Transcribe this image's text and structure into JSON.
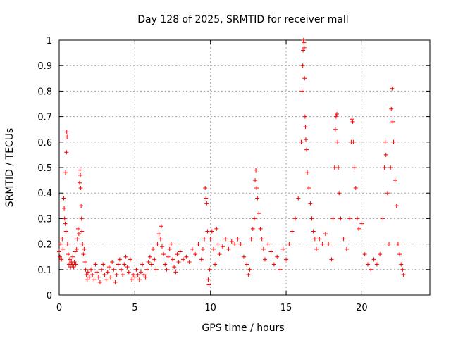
{
  "chart_data": {
    "type": "scatter",
    "title": "Day 128 of 2025, SRMTID for receiver mall",
    "xlabel": "GPS time / hours",
    "ylabel": "SRMTID / TECUs",
    "xlim": [
      0,
      24.5
    ],
    "ylim": [
      0,
      1
    ],
    "xticks": [
      0,
      5,
      10,
      15,
      20
    ],
    "xtick_labels": [
      "0",
      "5",
      "10",
      "15",
      "20"
    ],
    "yticks": [
      0,
      0.1,
      0.2,
      0.3,
      0.4,
      0.5,
      0.6,
      0.7,
      0.8,
      0.9,
      1
    ],
    "ytick_labels": [
      "0",
      "0.1",
      "0.2",
      "0.3",
      "0.4",
      "0.5",
      "0.6",
      "0.7",
      "0.8",
      "0.9",
      "1"
    ],
    "grid": true,
    "marker": "+",
    "color": "#ff0000",
    "series": [
      {
        "name": "SRMTID",
        "points": [
          [
            0.0,
            0.17
          ],
          [
            0.05,
            0.15
          ],
          [
            0.1,
            0.2
          ],
          [
            0.15,
            0.14
          ],
          [
            0.2,
            0.22
          ],
          [
            0.25,
            0.18
          ],
          [
            0.3,
            0.38
          ],
          [
            0.33,
            0.34
          ],
          [
            0.36,
            0.3
          ],
          [
            0.4,
            0.28
          ],
          [
            0.42,
            0.48
          ],
          [
            0.45,
            0.25
          ],
          [
            0.48,
            0.56
          ],
          [
            0.5,
            0.64
          ],
          [
            0.52,
            0.62
          ],
          [
            0.55,
            0.2
          ],
          [
            0.6,
            0.16
          ],
          [
            0.65,
            0.12
          ],
          [
            0.7,
            0.14
          ],
          [
            0.75,
            0.11
          ],
          [
            0.8,
            0.13
          ],
          [
            0.85,
            0.12
          ],
          [
            0.9,
            0.15
          ],
          [
            0.95,
            0.11
          ],
          [
            1.0,
            0.13
          ],
          [
            1.05,
            0.17
          ],
          [
            1.1,
            0.12
          ],
          [
            1.15,
            0.18
          ],
          [
            1.2,
            0.22
          ],
          [
            1.25,
            0.26
          ],
          [
            1.3,
            0.24
          ],
          [
            1.35,
            0.44
          ],
          [
            1.38,
            0.49
          ],
          [
            1.4,
            0.47
          ],
          [
            1.42,
            0.42
          ],
          [
            1.45,
            0.35
          ],
          [
            1.48,
            0.3
          ],
          [
            1.5,
            0.25
          ],
          [
            1.55,
            0.2
          ],
          [
            1.6,
            0.16
          ],
          [
            1.65,
            0.18
          ],
          [
            1.7,
            0.13
          ],
          [
            1.75,
            0.1
          ],
          [
            1.8,
            0.08
          ],
          [
            1.85,
            0.06
          ],
          [
            1.9,
            0.09
          ],
          [
            2.0,
            0.07
          ],
          [
            2.1,
            0.1
          ],
          [
            2.2,
            0.08
          ],
          [
            2.3,
            0.06
          ],
          [
            2.4,
            0.12
          ],
          [
            2.5,
            0.09
          ],
          [
            2.6,
            0.07
          ],
          [
            2.7,
            0.05
          ],
          [
            2.8,
            0.1
          ],
          [
            2.9,
            0.12
          ],
          [
            3.0,
            0.08
          ],
          [
            3.1,
            0.06
          ],
          [
            3.2,
            0.09
          ],
          [
            3.3,
            0.11
          ],
          [
            3.4,
            0.07
          ],
          [
            3.5,
            0.13
          ],
          [
            3.6,
            0.1
          ],
          [
            3.7,
            0.05
          ],
          [
            3.8,
            0.08
          ],
          [
            3.9,
            0.12
          ],
          [
            4.0,
            0.14
          ],
          [
            4.1,
            0.1
          ],
          [
            4.2,
            0.08
          ],
          [
            4.3,
            0.12
          ],
          [
            4.4,
            0.15
          ],
          [
            4.5,
            0.11
          ],
          [
            4.6,
            0.09
          ],
          [
            4.7,
            0.14
          ],
          [
            4.8,
            0.06
          ],
          [
            4.9,
            0.08
          ],
          [
            5.0,
            0.07
          ],
          [
            5.1,
            0.1
          ],
          [
            5.2,
            0.08
          ],
          [
            5.3,
            0.06
          ],
          [
            5.4,
            0.09
          ],
          [
            5.5,
            0.12
          ],
          [
            5.6,
            0.08
          ],
          [
            5.7,
            0.07
          ],
          [
            5.8,
            0.1
          ],
          [
            5.9,
            0.13
          ],
          [
            6.0,
            0.15
          ],
          [
            6.1,
            0.12
          ],
          [
            6.2,
            0.18
          ],
          [
            6.3,
            0.14
          ],
          [
            6.4,
            0.1
          ],
          [
            6.5,
            0.2
          ],
          [
            6.6,
            0.24
          ],
          [
            6.7,
            0.22
          ],
          [
            6.75,
            0.27
          ],
          [
            6.8,
            0.19
          ],
          [
            6.9,
            0.16
          ],
          [
            7.0,
            0.12
          ],
          [
            7.1,
            0.1
          ],
          [
            7.2,
            0.15
          ],
          [
            7.3,
            0.18
          ],
          [
            7.4,
            0.2
          ],
          [
            7.5,
            0.14
          ],
          [
            7.6,
            0.11
          ],
          [
            7.7,
            0.09
          ],
          [
            7.8,
            0.16
          ],
          [
            7.9,
            0.13
          ],
          [
            8.0,
            0.17
          ],
          [
            8.2,
            0.14
          ],
          [
            8.4,
            0.15
          ],
          [
            8.6,
            0.13
          ],
          [
            8.8,
            0.18
          ],
          [
            9.0,
            0.16
          ],
          [
            9.2,
            0.2
          ],
          [
            9.4,
            0.14
          ],
          [
            9.5,
            0.18
          ],
          [
            9.6,
            0.22
          ],
          [
            9.65,
            0.42
          ],
          [
            9.7,
            0.38
          ],
          [
            9.75,
            0.36
          ],
          [
            9.8,
            0.25
          ],
          [
            9.85,
            0.06
          ],
          [
            9.9,
            0.04
          ],
          [
            9.95,
            0.1
          ],
          [
            10.0,
            0.22
          ],
          [
            10.1,
            0.25
          ],
          [
            10.2,
            0.18
          ],
          [
            10.3,
            0.12
          ],
          [
            10.4,
            0.26
          ],
          [
            10.5,
            0.2
          ],
          [
            10.6,
            0.16
          ],
          [
            10.8,
            0.19
          ],
          [
            11.0,
            0.22
          ],
          [
            11.2,
            0.18
          ],
          [
            11.4,
            0.21
          ],
          [
            11.6,
            0.2
          ],
          [
            11.8,
            0.22
          ],
          [
            12.0,
            0.2
          ],
          [
            12.2,
            0.15
          ],
          [
            12.4,
            0.12
          ],
          [
            12.5,
            0.08
          ],
          [
            12.6,
            0.1
          ],
          [
            12.7,
            0.22
          ],
          [
            12.8,
            0.26
          ],
          [
            12.9,
            0.3
          ],
          [
            12.95,
            0.45
          ],
          [
            13.0,
            0.49
          ],
          [
            13.05,
            0.42
          ],
          [
            13.1,
            0.38
          ],
          [
            13.2,
            0.32
          ],
          [
            13.3,
            0.26
          ],
          [
            13.4,
            0.22
          ],
          [
            13.5,
            0.18
          ],
          [
            13.6,
            0.14
          ],
          [
            13.8,
            0.2
          ],
          [
            14.0,
            0.17
          ],
          [
            14.2,
            0.12
          ],
          [
            14.4,
            0.15
          ],
          [
            14.6,
            0.1
          ],
          [
            14.8,
            0.18
          ],
          [
            15.0,
            0.14
          ],
          [
            15.2,
            0.2
          ],
          [
            15.4,
            0.25
          ],
          [
            15.6,
            0.3
          ],
          [
            15.8,
            0.38
          ],
          [
            16.0,
            0.6
          ],
          [
            16.05,
            0.8
          ],
          [
            16.1,
            0.9
          ],
          [
            16.12,
            0.96
          ],
          [
            16.15,
            1.0
          ],
          [
            16.18,
            0.99
          ],
          [
            16.2,
            0.97
          ],
          [
            16.22,
            0.85
          ],
          [
            16.25,
            0.7
          ],
          [
            16.28,
            0.66
          ],
          [
            16.3,
            0.61
          ],
          [
            16.35,
            0.57
          ],
          [
            16.4,
            0.48
          ],
          [
            16.5,
            0.42
          ],
          [
            16.6,
            0.36
          ],
          [
            16.7,
            0.3
          ],
          [
            16.8,
            0.25
          ],
          [
            16.9,
            0.22
          ],
          [
            17.0,
            0.18
          ],
          [
            17.2,
            0.22
          ],
          [
            17.4,
            0.2
          ],
          [
            17.6,
            0.24
          ],
          [
            17.8,
            0.2
          ],
          [
            18.0,
            0.14
          ],
          [
            18.1,
            0.3
          ],
          [
            18.2,
            0.5
          ],
          [
            18.25,
            0.65
          ],
          [
            18.3,
            0.7
          ],
          [
            18.35,
            0.71
          ],
          [
            18.4,
            0.6
          ],
          [
            18.45,
            0.5
          ],
          [
            18.5,
            0.4
          ],
          [
            18.6,
            0.3
          ],
          [
            18.8,
            0.22
          ],
          [
            19.0,
            0.18
          ],
          [
            19.2,
            0.3
          ],
          [
            19.3,
            0.6
          ],
          [
            19.35,
            0.69
          ],
          [
            19.4,
            0.68
          ],
          [
            19.45,
            0.6
          ],
          [
            19.5,
            0.5
          ],
          [
            19.6,
            0.42
          ],
          [
            19.7,
            0.3
          ],
          [
            19.8,
            0.26
          ],
          [
            20.0,
            0.28
          ],
          [
            20.2,
            0.16
          ],
          [
            20.4,
            0.12
          ],
          [
            20.6,
            0.1
          ],
          [
            20.8,
            0.14
          ],
          [
            21.0,
            0.12
          ],
          [
            21.2,
            0.16
          ],
          [
            21.4,
            0.3
          ],
          [
            21.5,
            0.5
          ],
          [
            21.55,
            0.6
          ],
          [
            21.6,
            0.55
          ],
          [
            21.7,
            0.4
          ],
          [
            21.8,
            0.2
          ],
          [
            21.9,
            0.5
          ],
          [
            21.95,
            0.73
          ],
          [
            22.0,
            0.81
          ],
          [
            22.05,
            0.68
          ],
          [
            22.1,
            0.6
          ],
          [
            22.2,
            0.45
          ],
          [
            22.3,
            0.35
          ],
          [
            22.4,
            0.2
          ],
          [
            22.5,
            0.16
          ],
          [
            22.6,
            0.12
          ],
          [
            22.7,
            0.1
          ],
          [
            22.75,
            0.08
          ]
        ]
      }
    ]
  }
}
